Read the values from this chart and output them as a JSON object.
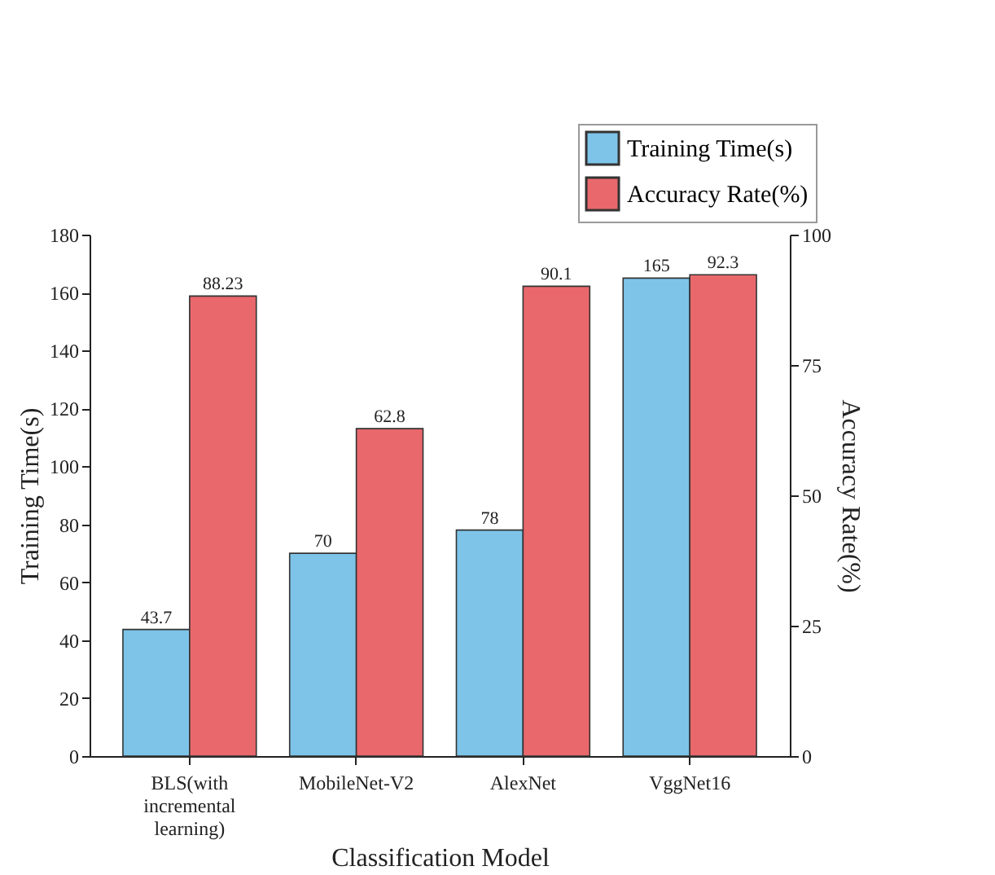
{
  "chart_data": {
    "type": "bar",
    "xlabel": "Classification Model",
    "ylabel": "Training Time(s)",
    "y2label": "Accuracy Rate(%)",
    "categories": [
      "BLS(with incremental learning)",
      "MobileNet-V2",
      "AlexNet",
      "VggNet16"
    ],
    "series": [
      {
        "name": "Training Time(s)",
        "color": "#7dc4e8",
        "values": [
          43.7,
          70,
          78,
          165
        ]
      },
      {
        "name": "Accuracy Rate(%)",
        "color": "#e9686c",
        "values": [
          88.23,
          62.8,
          90.1,
          92.3
        ],
        "axis": "y2",
        "value_labels": [
          "88.23",
          "62.8",
          "90.1",
          "92.3"
        ]
      }
    ],
    "ylim": [
      0,
      180
    ],
    "yticks": [
      0,
      20,
      40,
      60,
      80,
      100,
      120,
      140,
      160,
      180
    ],
    "y2lim": [
      0,
      100
    ],
    "y2ticks": [
      0,
      25,
      50,
      75,
      100
    ],
    "data_labels": true,
    "legend": "top right",
    "grid": false
  }
}
